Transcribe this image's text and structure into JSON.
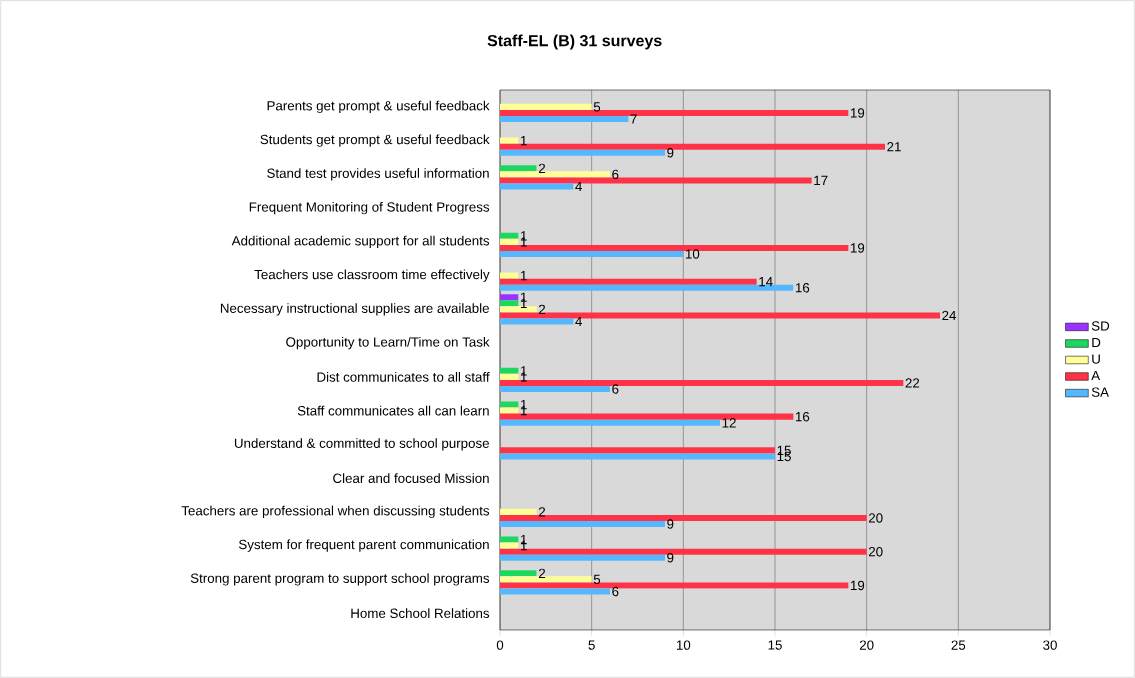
{
  "chart_data": {
    "type": "bar",
    "orientation": "horizontal",
    "title": "Staff-EL (B) 31 surveys",
    "categories": [
      "Parents get prompt & useful feedback",
      "Students get prompt & useful feedback",
      "Stand test provides useful information",
      "Frequent Monitoring of Student Progress",
      "Additional academic support for all students",
      "Teachers use classroom time effectively",
      "Necessary instructional supplies are available",
      "Opportunity to Learn/Time on Task",
      "Dist communicates to all staff",
      "Staff communicates all can learn",
      "Understand & committed to school purpose",
      "Clear and focused Mission",
      "Teachers are professional when discussing students",
      "System for frequent parent communication",
      "Strong parent program to support school programs",
      "Home School Relations"
    ],
    "series": [
      {
        "name": "SD",
        "color": "#9933ff",
        "values": [
          null,
          null,
          null,
          null,
          null,
          null,
          1,
          null,
          null,
          null,
          null,
          null,
          null,
          null,
          null,
          null
        ]
      },
      {
        "name": "D",
        "color": "#1ed760",
        "values": [
          null,
          null,
          2,
          null,
          1,
          null,
          1,
          null,
          1,
          1,
          null,
          null,
          null,
          1,
          2,
          null
        ]
      },
      {
        "name": "U",
        "color": "#ffff99",
        "values": [
          5,
          1,
          6,
          null,
          1,
          1,
          2,
          null,
          1,
          1,
          null,
          null,
          2,
          1,
          5,
          null
        ]
      },
      {
        "name": "A",
        "color": "#ff3347",
        "values": [
          19,
          21,
          17,
          null,
          19,
          14,
          24,
          null,
          22,
          16,
          15,
          null,
          20,
          20,
          19,
          null
        ]
      },
      {
        "name": "SA",
        "color": "#55b8ff",
        "values": [
          7,
          9,
          4,
          null,
          10,
          16,
          4,
          null,
          6,
          12,
          15,
          null,
          9,
          9,
          6,
          null
        ]
      }
    ],
    "xlim": [
      0,
      30
    ],
    "xticks": [
      0,
      5,
      10,
      15,
      20,
      25,
      30
    ],
    "grid": "x",
    "legend": "right",
    "data_labels": true
  }
}
